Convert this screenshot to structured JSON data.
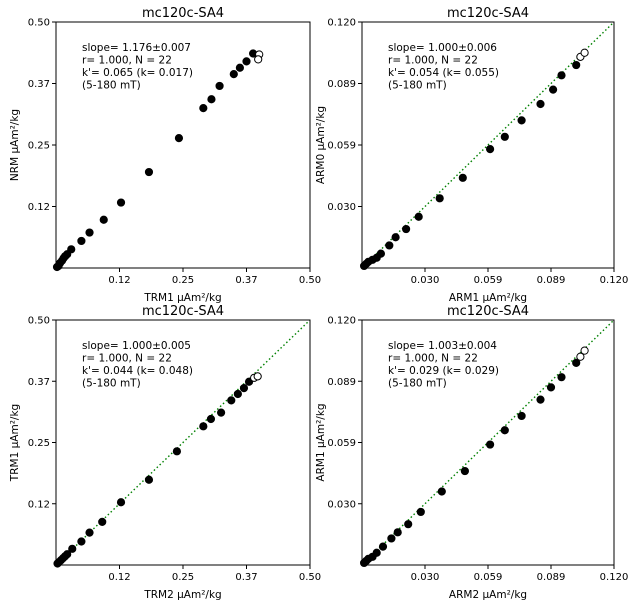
{
  "chart_data": [
    {
      "type": "scatter",
      "title": "mc120c-SA4",
      "xlabel": "TRM1 µAm²/kg",
      "ylabel": "NRM µAm²/kg",
      "xlim": [
        0,
        0.5
      ],
      "ylim": [
        0,
        0.5
      ],
      "xticks": [
        "0.12",
        "0.25",
        "0.37",
        "0.50"
      ],
      "yticks": [
        "0.12",
        "0.25",
        "0.37",
        "0.50"
      ],
      "annotation": [
        "slope= 1.176±0.007",
        "r= 1.000, N = 22",
        "k'= 0.065 (k= 0.017)",
        "(5-180 mT)"
      ],
      "fit_line": false,
      "series": [
        {
          "marker": "filled",
          "x": [
            0.002,
            0.005,
            0.008,
            0.012,
            0.015,
            0.018,
            0.022,
            0.03,
            0.05,
            0.066,
            0.094,
            0.128,
            0.183,
            0.242,
            0.29,
            0.306,
            0.322,
            0.35,
            0.362,
            0.375,
            0.388
          ],
          "y": [
            0.002,
            0.004,
            0.01,
            0.015,
            0.02,
            0.024,
            0.028,
            0.038,
            0.055,
            0.072,
            0.098,
            0.133,
            0.195,
            0.264,
            0.325,
            0.343,
            0.37,
            0.394,
            0.407,
            0.42,
            0.436
          ]
        },
        {
          "marker": "open",
          "x": [
            0.4,
            0.398
          ],
          "y": [
            0.434,
            0.424
          ]
        }
      ]
    },
    {
      "type": "scatter",
      "title": "mc120c-SA4",
      "xlabel": "ARM1 µAm²/kg",
      "ylabel": "ARM0 µAm²/kg",
      "xlim": [
        0,
        0.12
      ],
      "ylim": [
        0,
        0.12
      ],
      "xticks": [
        "0.030",
        "0.059",
        "0.089",
        "0.120"
      ],
      "yticks": [
        "0.030",
        "0.059",
        "0.089",
        "0.120"
      ],
      "annotation": [
        "slope= 1.000±0.006",
        "r= 1.000, N = 22",
        "k'= 0.054 (k= 0.055)",
        "(5-180 mT)"
      ],
      "fit_line": true,
      "line_color": "#008000",
      "series": [
        {
          "marker": "filled",
          "x": [
            0.001,
            0.002,
            0.003,
            0.005,
            0.007,
            0.009,
            0.013,
            0.016,
            0.021,
            0.027,
            0.037,
            0.048,
            0.061,
            0.068,
            0.076,
            0.085,
            0.091,
            0.095,
            0.102
          ],
          "y": [
            0.001,
            0.002,
            0.003,
            0.004,
            0.005,
            0.007,
            0.011,
            0.015,
            0.019,
            0.025,
            0.034,
            0.044,
            0.058,
            0.064,
            0.072,
            0.08,
            0.087,
            0.094,
            0.099
          ]
        },
        {
          "marker": "open",
          "x": [
            0.104,
            0.106
          ],
          "y": [
            0.103,
            0.105
          ]
        }
      ]
    },
    {
      "type": "scatter",
      "title": "mc120c-SA4",
      "xlabel": "TRM2 µAm²/kg",
      "ylabel": "TRM1 µAm²/kg",
      "xlim": [
        0,
        0.5
      ],
      "ylim": [
        0,
        0.5
      ],
      "xticks": [
        "0.12",
        "0.25",
        "0.37",
        "0.50"
      ],
      "yticks": [
        "0.12",
        "0.25",
        "0.37",
        "0.50"
      ],
      "annotation": [
        "slope= 1.000±0.005",
        "r= 1.000, N = 22",
        "k'= 0.044 (k= 0.048)",
        "(5-180 mT)"
      ],
      "fit_line": true,
      "line_color": "#008000",
      "series": [
        {
          "marker": "filled",
          "x": [
            0.003,
            0.006,
            0.01,
            0.014,
            0.018,
            0.022,
            0.032,
            0.05,
            0.066,
            0.091,
            0.128,
            0.183,
            0.238,
            0.29,
            0.305,
            0.325,
            0.345,
            0.358,
            0.37,
            0.38
          ],
          "y": [
            0.003,
            0.006,
            0.01,
            0.014,
            0.018,
            0.022,
            0.033,
            0.048,
            0.066,
            0.088,
            0.128,
            0.174,
            0.232,
            0.283,
            0.298,
            0.311,
            0.336,
            0.349,
            0.361,
            0.374
          ]
        },
        {
          "marker": "open",
          "x": [
            0.39,
            0.397
          ],
          "y": [
            0.382,
            0.385
          ]
        }
      ]
    },
    {
      "type": "scatter",
      "title": "mc120c-SA4",
      "xlabel": "ARM2 µAm²/kg",
      "ylabel": "ARM1 µAm²/kg",
      "xlim": [
        0,
        0.12
      ],
      "ylim": [
        0,
        0.12
      ],
      "xticks": [
        "0.030",
        "0.059",
        "0.089",
        "0.120"
      ],
      "yticks": [
        "0.030",
        "0.059",
        "0.089",
        "0.120"
      ],
      "annotation": [
        "slope= 1.003±0.004",
        "r= 1.000, N = 22",
        "k'= 0.029 (k= 0.029)",
        "(5-180 mT)"
      ],
      "fit_line": true,
      "line_color": "#008000",
      "series": [
        {
          "marker": "filled",
          "x": [
            0.001,
            0.002,
            0.003,
            0.005,
            0.007,
            0.01,
            0.014,
            0.017,
            0.022,
            0.028,
            0.038,
            0.049,
            0.061,
            0.068,
            0.076,
            0.085,
            0.09,
            0.095,
            0.102
          ],
          "y": [
            0.001,
            0.002,
            0.003,
            0.004,
            0.006,
            0.009,
            0.013,
            0.016,
            0.02,
            0.026,
            0.036,
            0.046,
            0.059,
            0.066,
            0.073,
            0.081,
            0.087,
            0.092,
            0.099
          ]
        },
        {
          "marker": "open",
          "x": [
            0.104,
            0.106
          ],
          "y": [
            0.102,
            0.105
          ]
        }
      ]
    }
  ]
}
